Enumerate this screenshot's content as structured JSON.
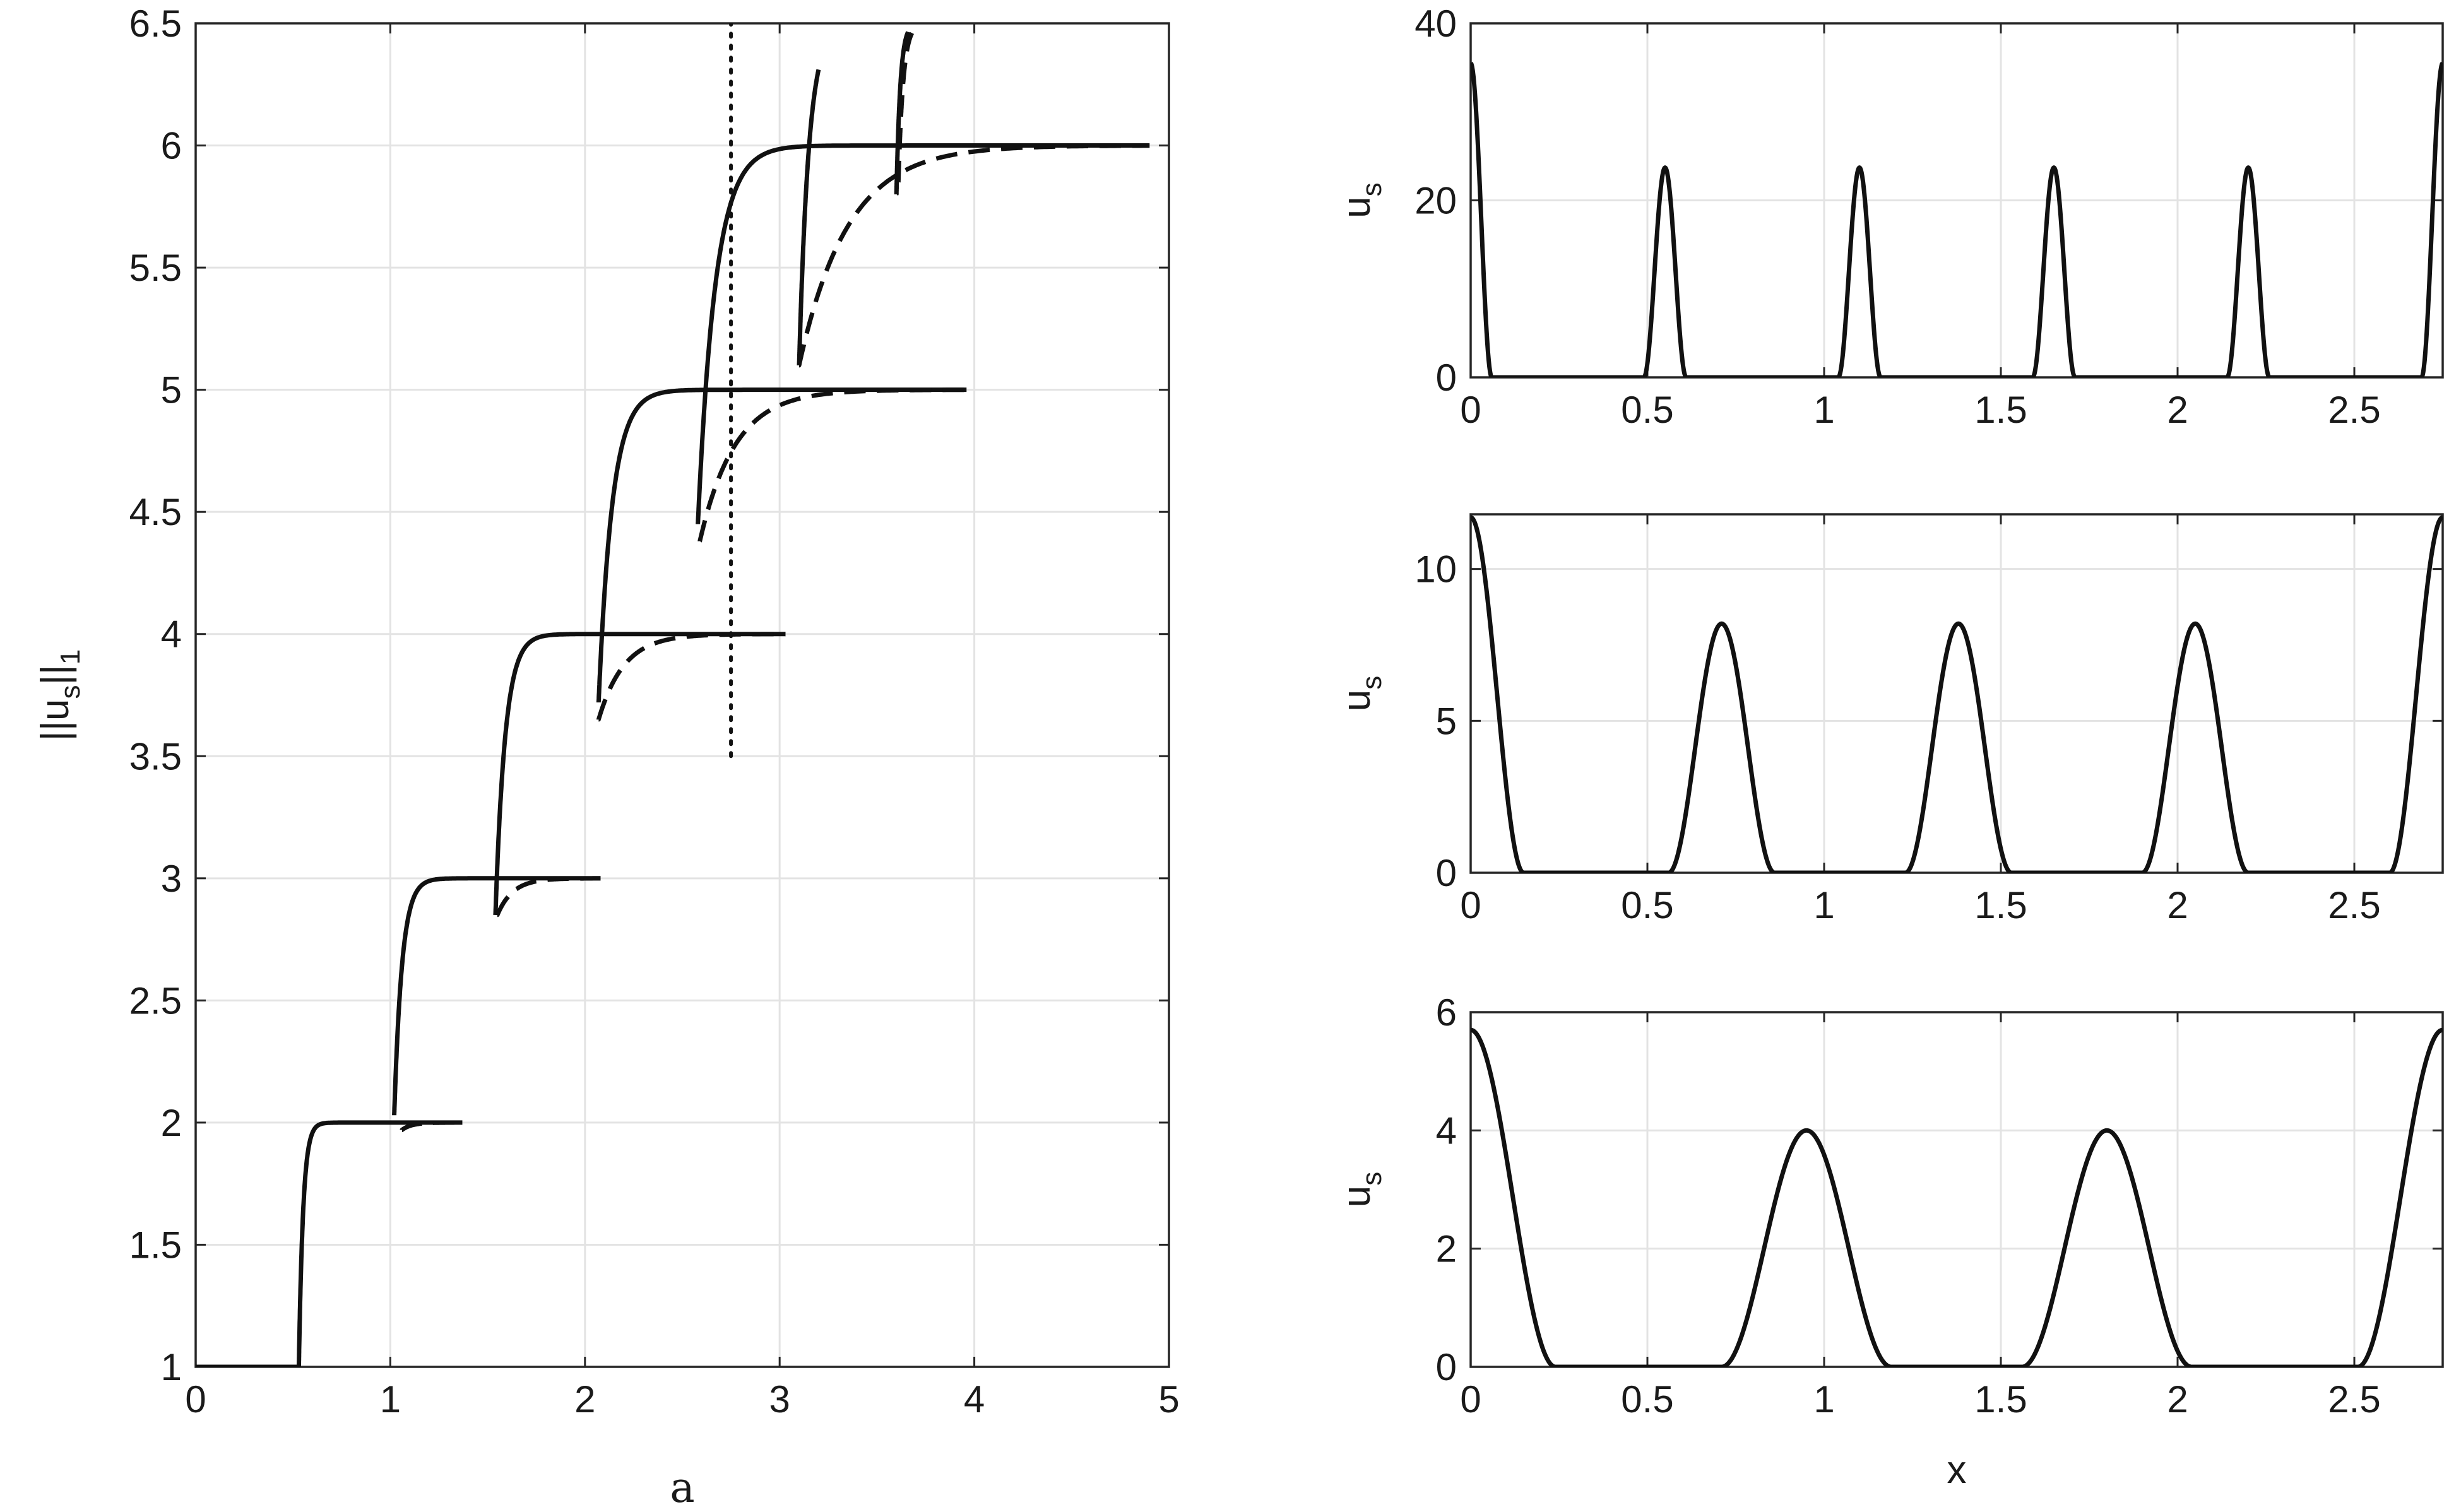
{
  "chart_data": [
    {
      "type": "line",
      "panel": "left",
      "xlabel": "a",
      "ylabel": "||u_s||_1",
      "ylabel_parts": {
        "pre": "||u",
        "sub1": "s",
        "mid": "||",
        "sub2": "1"
      },
      "xlim": [
        0,
        5
      ],
      "ylim": [
        1,
        6.5
      ],
      "xticks": [
        0,
        1,
        2,
        3,
        4,
        5
      ],
      "yticks": [
        1,
        1.5,
        2,
        2.5,
        3,
        3.5,
        4,
        4.5,
        5,
        5.5,
        6,
        6.5
      ],
      "grid": true,
      "legend": "none",
      "dotted_vline": {
        "x": 2.75,
        "y_from": 3.5,
        "y_to": 6.5
      },
      "branches": [
        {
          "style": "solid",
          "k": 1,
          "a_start": 0.53,
          "y_start": 1.0,
          "a_end": 1.37,
          "target": 2.0,
          "tau": 0.022
        },
        {
          "style": "solid",
          "k": 2,
          "a_start": 1.02,
          "y_start": 2.03,
          "a_end": 2.08,
          "target": 3.0,
          "tau": 0.04
        },
        {
          "style": "solid",
          "k": 3,
          "a_start": 1.54,
          "y_start": 2.85,
          "a_end": 3.03,
          "target": 4.0,
          "tau": 0.05
        },
        {
          "style": "solid",
          "k": 4,
          "a_start": 2.07,
          "y_start": 3.72,
          "a_end": 3.96,
          "target": 5.0,
          "tau": 0.07
        },
        {
          "style": "solid",
          "k": 5,
          "a_start": 2.58,
          "y_start": 4.45,
          "a_end": 4.9,
          "target": 6.0,
          "tau": 0.09
        },
        {
          "style": "dashed",
          "k": 1,
          "a_start": 1.06,
          "y_start": 1.97,
          "a_end": 1.37,
          "target": 2.0,
          "tau": 0.05
        },
        {
          "style": "dashed",
          "k": 2,
          "a_start": 1.55,
          "y_start": 2.85,
          "a_end": 2.08,
          "target": 3.0,
          "tau": 0.08
        },
        {
          "style": "dashed",
          "k": 3,
          "a_start": 2.07,
          "y_start": 3.65,
          "a_end": 3.03,
          "target": 4.0,
          "tau": 0.13
        },
        {
          "style": "dashed",
          "k": 4,
          "a_start": 2.59,
          "y_start": 4.38,
          "a_end": 3.96,
          "target": 5.0,
          "tau": 0.18
        },
        {
          "style": "dashed",
          "k": 5,
          "a_start": 3.1,
          "y_start": 5.1,
          "a_end": 4.9,
          "target": 6.0,
          "tau": 0.25
        },
        {
          "style": "solid",
          "k": 6,
          "a_start": 3.1,
          "y_start": 5.1,
          "a_end": 3.2,
          "target": 6.5,
          "tau": 0.05,
          "clipped": true
        },
        {
          "style": "solid",
          "k": 7,
          "a_start": 3.6,
          "y_start": 5.8,
          "a_end": 3.66,
          "target": 6.5,
          "tau": 0.02,
          "clipped": true
        },
        {
          "style": "dashed",
          "k": 7,
          "a_start": 3.61,
          "y_start": 5.85,
          "a_end": 3.68,
          "target": 6.5,
          "tau": 0.025,
          "clipped": true
        }
      ]
    },
    {
      "type": "line",
      "panel": "right-top",
      "xlabel": "",
      "ylabel": "u_s",
      "ylabel_parts": {
        "pre": "u",
        "sub": "s"
      },
      "xlim": [
        0,
        2.75
      ],
      "ylim": [
        0,
        40
      ],
      "xticks": [
        0,
        0.5,
        1,
        1.5,
        2,
        2.5
      ],
      "yticks": [
        0,
        20,
        40
      ],
      "grid": true,
      "period": 0.55,
      "interior_peak_height": 23.7,
      "boundary_peak_height": 35.5,
      "peak_width": 0.06,
      "peak_positions": [
        0,
        0.55,
        1.1,
        1.65,
        2.2,
        2.75
      ]
    },
    {
      "type": "line",
      "panel": "right-middle",
      "xlabel": "",
      "ylabel": "u_s",
      "ylabel_parts": {
        "pre": "u",
        "sub": "s"
      },
      "xlim": [
        0,
        2.75
      ],
      "ylim": [
        0,
        11.8
      ],
      "xticks": [
        0,
        0.5,
        1,
        1.5,
        2,
        2.5
      ],
      "yticks": [
        0,
        5,
        10
      ],
      "grid": true,
      "period": 0.67,
      "interior_peak_height": 8.2,
      "boundary_peak_height": 11.7,
      "peak_width": 0.15,
      "peak_positions": [
        0,
        0.71,
        1.38,
        2.05,
        2.75
      ]
    },
    {
      "type": "line",
      "panel": "right-bottom",
      "xlabel": "x",
      "ylabel": "u_s",
      "ylabel_parts": {
        "pre": "u",
        "sub": "s"
      },
      "xlim": [
        0,
        2.75
      ],
      "ylim": [
        0,
        6
      ],
      "xticks": [
        0,
        0.5,
        1,
        1.5,
        2,
        2.5
      ],
      "yticks": [
        0,
        2,
        4,
        6
      ],
      "grid": true,
      "period": 0.85,
      "interior_peak_height": 4.0,
      "boundary_peak_height": 5.7,
      "peak_width": 0.24,
      "peak_positions": [
        0,
        0.95,
        1.8,
        2.75
      ]
    }
  ]
}
